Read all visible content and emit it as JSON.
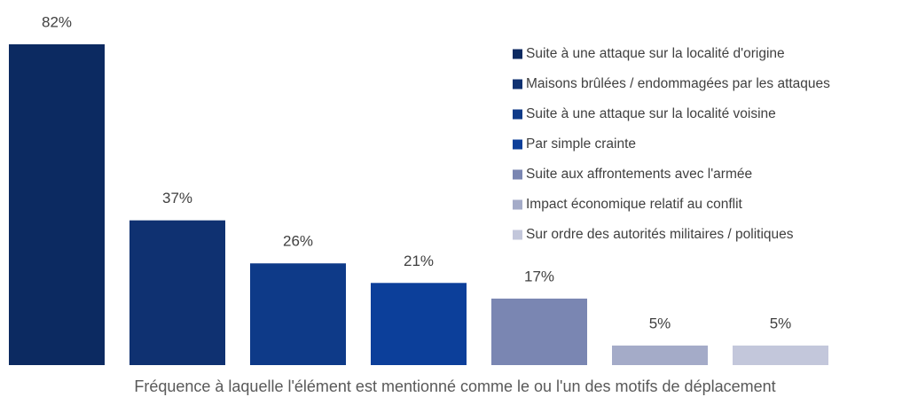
{
  "chart_data": {
    "type": "bar",
    "x_label": "Fréquence à laquelle l'élément est mentionné comme le ou l'un des motifs de déplacement",
    "categories": [
      "Suite à une attaque sur la localité d'origine",
      "Maisons brûlées / endommagées par les attaques",
      "Suite à une attaque sur la localité voisine",
      "Par simple crainte",
      "Suite aux affrontements avec l'armée",
      "Impact économique relatif au conflit",
      "Sur ordre des autorités militaires / politiques"
    ],
    "values": [
      82,
      37,
      26,
      21,
      17,
      5,
      5
    ],
    "value_labels": [
      "82%",
      "37%",
      "26%",
      "21%",
      "17%",
      "5%",
      "5%"
    ],
    "colors": [
      "#0c2a61",
      "#0f3171",
      "#0e3a88",
      "#0c3f9a",
      "#7a86b2",
      "#a4abc8",
      "#c3c7db"
    ],
    "legend": "right"
  }
}
